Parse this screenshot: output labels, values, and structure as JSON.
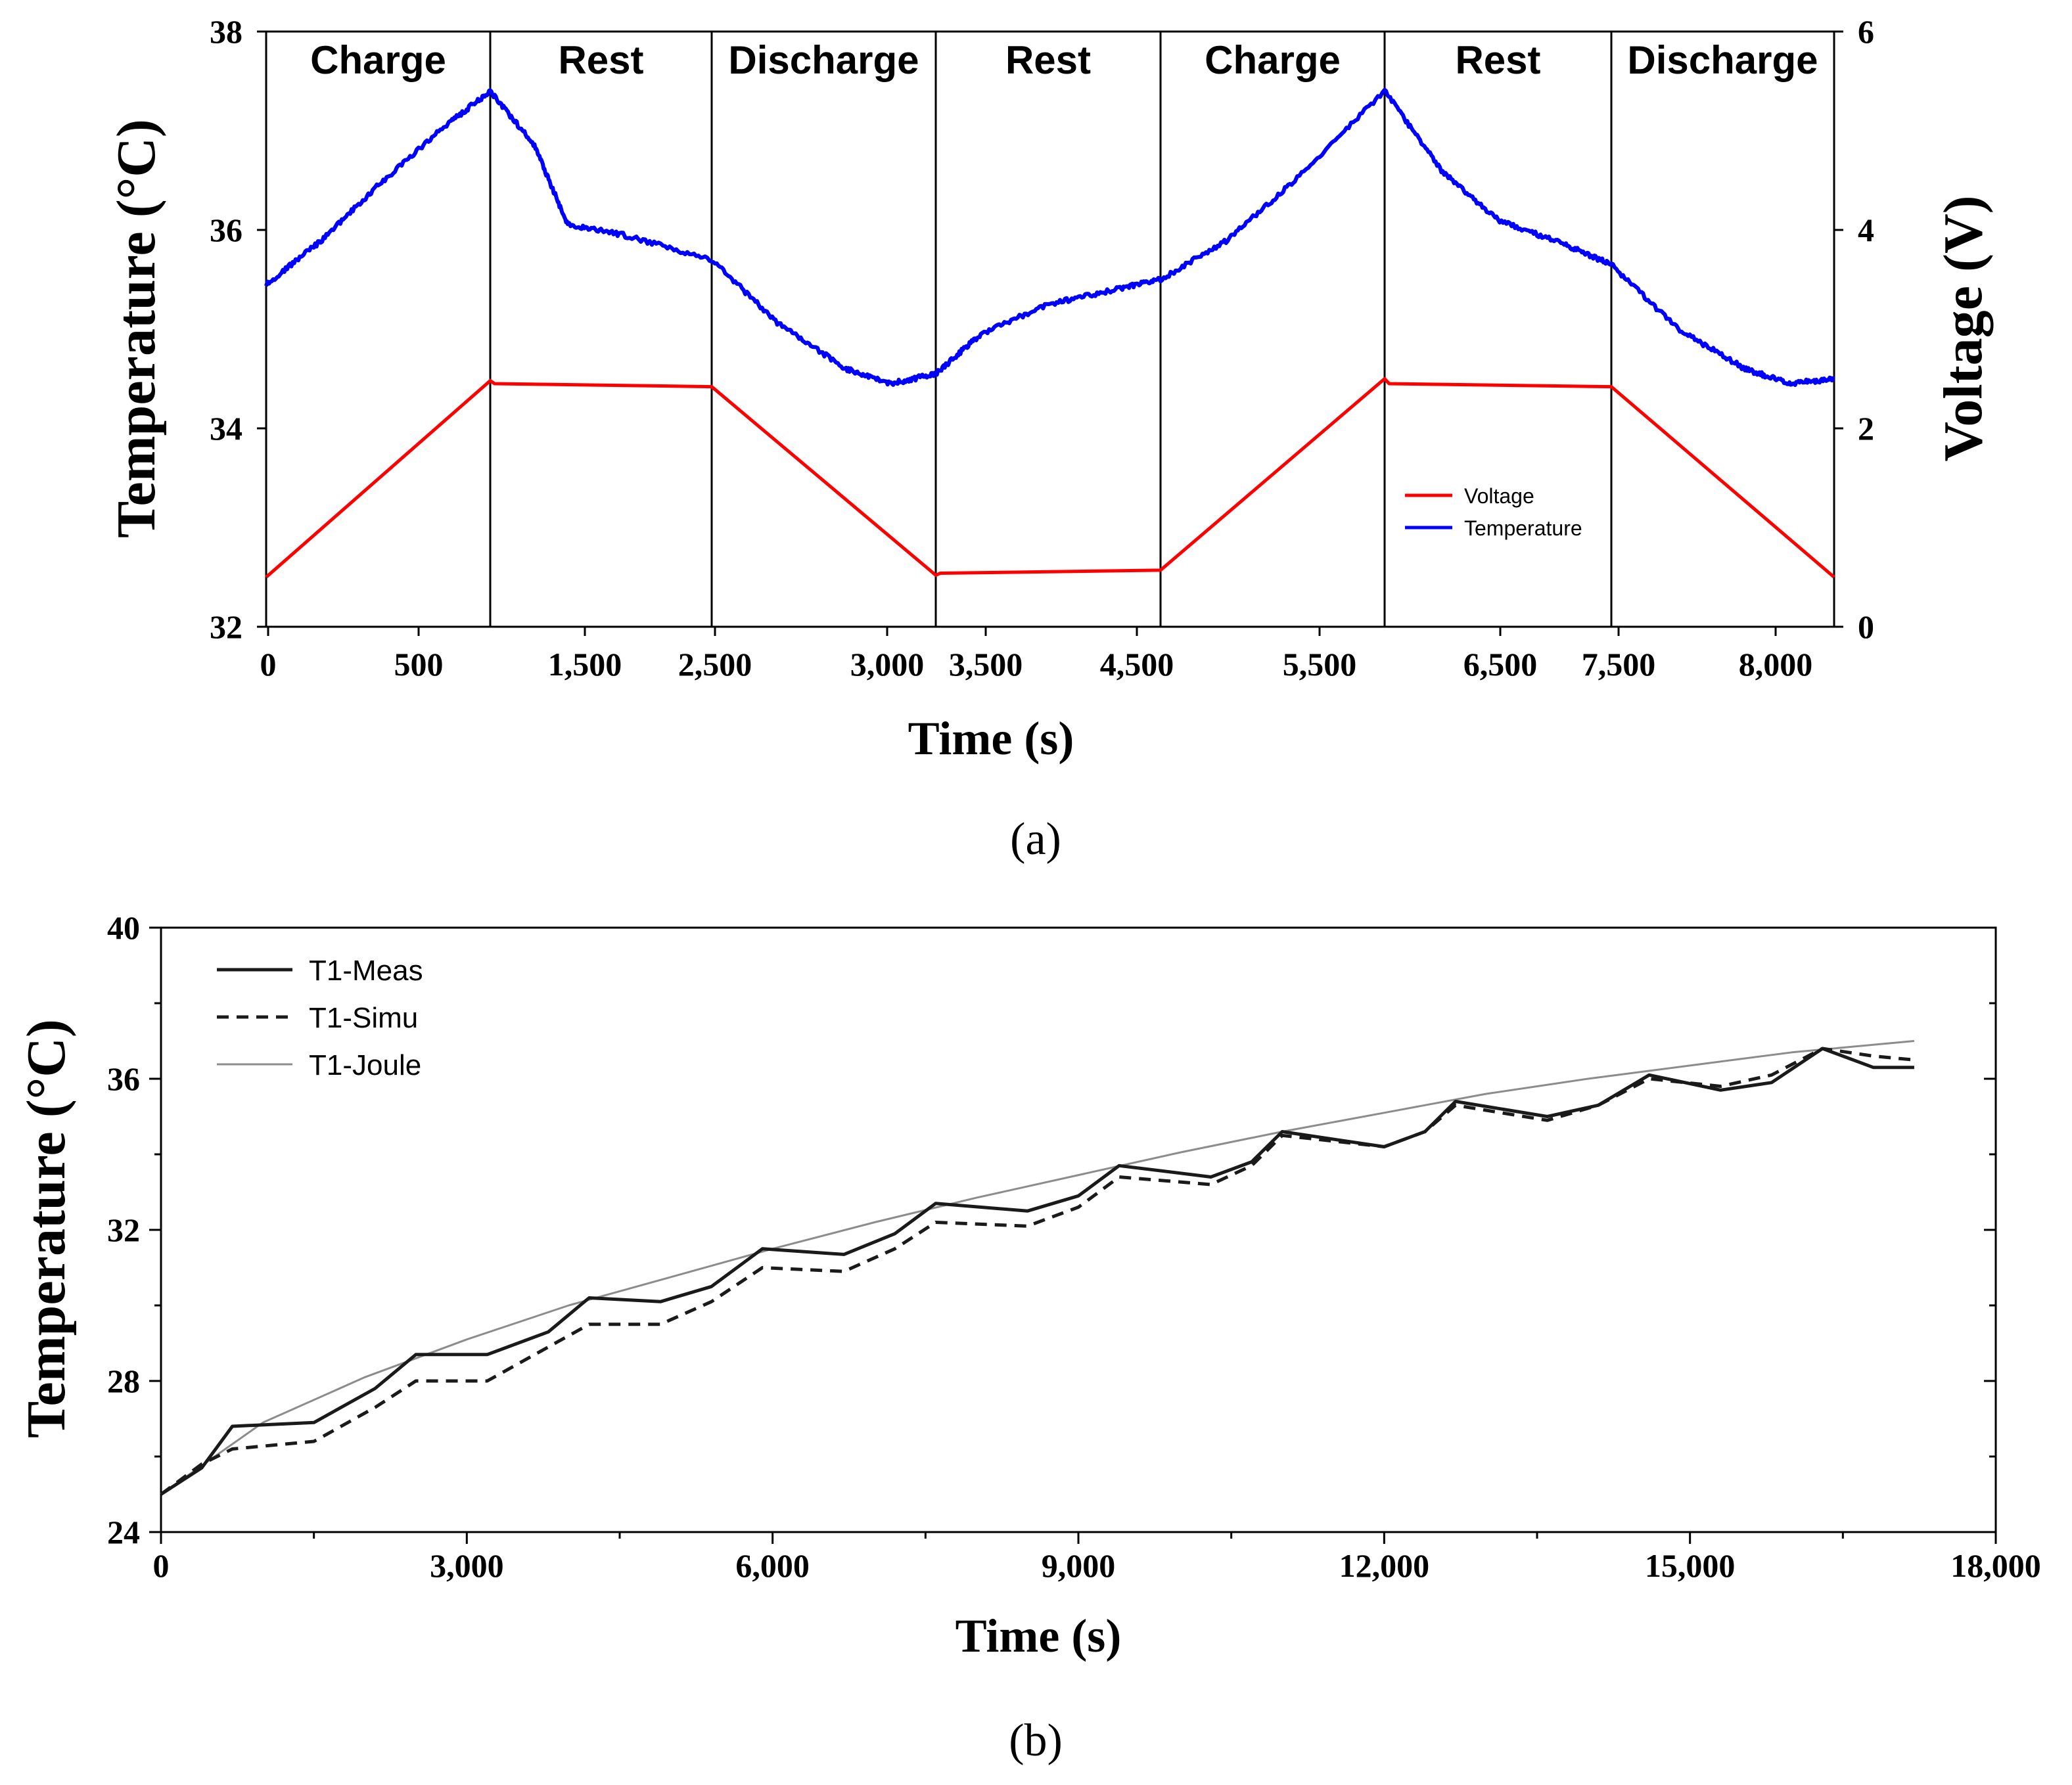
{
  "chart_data": [
    {
      "type": "line",
      "panel_label": "(a)",
      "xlabel": "Time (s)",
      "ylabel": "Temperature (°C)",
      "y2label": "Voltage (V)",
      "ylim": [
        32,
        38
      ],
      "y2lim": [
        0,
        6
      ],
      "yticks": [
        "32",
        "34",
        "36",
        "38"
      ],
      "y2ticks": [
        "0",
        "2",
        "4",
        "6"
      ],
      "xtick_labels": [
        "0",
        "500",
        "1,500",
        "2,500",
        "3,000",
        "3,500",
        "4,500",
        "5,500",
        "6,500",
        "7,500",
        "8,000"
      ],
      "phases": [
        "Charge",
        "Rest",
        "Discharge",
        "Rest",
        "Charge",
        "Rest",
        "Discharge"
      ],
      "phase_boundaries": [
        0,
        1,
        2,
        3,
        4,
        5,
        6,
        7
      ],
      "legend_position": "lower-right",
      "series": [
        {
          "name": "Voltage",
          "color": "#ff0000",
          "axis": "right",
          "points": [
            [
              0,
              0.5
            ],
            [
              1,
              2.48
            ],
            [
              1.02,
              2.45
            ],
            [
              2,
              2.42
            ],
            [
              3,
              0.52
            ],
            [
              3.02,
              0.54
            ],
            [
              4,
              0.57
            ],
            [
              5,
              2.5
            ],
            [
              5.02,
              2.45
            ],
            [
              6,
              2.42
            ],
            [
              7,
              0.5
            ]
          ]
        },
        {
          "name": "Temperature",
          "color": "#0000ff",
          "axis": "left",
          "noisy": true,
          "points": [
            [
              0,
              35.45
            ],
            [
              0.25,
              35.9
            ],
            [
              0.5,
              36.45
            ],
            [
              0.8,
              37.05
            ],
            [
              1,
              37.4
            ],
            [
              1.2,
              36.85
            ],
            [
              1.35,
              36.05
            ],
            [
              1.6,
              35.95
            ],
            [
              2,
              35.7
            ],
            [
              2.3,
              35.05
            ],
            [
              2.6,
              34.6
            ],
            [
              2.8,
              34.45
            ],
            [
              3,
              34.55
            ],
            [
              3.2,
              34.95
            ],
            [
              3.5,
              35.25
            ],
            [
              3.8,
              35.4
            ],
            [
              4,
              35.5
            ],
            [
              4.3,
              35.9
            ],
            [
              4.6,
              36.5
            ],
            [
              5,
              37.4
            ],
            [
              5.25,
              36.6
            ],
            [
              5.5,
              36.1
            ],
            [
              5.8,
              35.85
            ],
            [
              6,
              35.65
            ],
            [
              6.3,
              35.0
            ],
            [
              6.6,
              34.6
            ],
            [
              6.8,
              34.45
            ],
            [
              7,
              34.5
            ]
          ]
        }
      ]
    },
    {
      "type": "line",
      "panel_label": "(b)",
      "xlabel": "Time (s)",
      "ylabel": "Temperature (°C)",
      "xlim": [
        0,
        18000
      ],
      "ylim": [
        24,
        40
      ],
      "xticks": [
        0,
        3000,
        6000,
        9000,
        12000,
        15000,
        18000
      ],
      "xtick_labels": [
        "0",
        "3,000",
        "6,000",
        "9,000",
        "12,000",
        "15,000",
        "18,000"
      ],
      "yticks": [
        24,
        28,
        32,
        36,
        40
      ],
      "ytick_labels": [
        "24",
        "28",
        "32",
        "36",
        "40"
      ],
      "legend_position": "top-left",
      "series": [
        {
          "name": "T1-Meas",
          "color": "#1a1a1a",
          "style": "solid",
          "points": [
            [
              0,
              25.0
            ],
            [
              400,
              25.7
            ],
            [
              700,
              26.8
            ],
            [
              1100,
              26.85
            ],
            [
              1500,
              26.9
            ],
            [
              2100,
              27.8
            ],
            [
              2500,
              28.7
            ],
            [
              3200,
              28.7
            ],
            [
              3800,
              29.3
            ],
            [
              4200,
              30.2
            ],
            [
              4900,
              30.1
            ],
            [
              5400,
              30.5
            ],
            [
              5900,
              31.5
            ],
            [
              6700,
              31.35
            ],
            [
              7200,
              31.9
            ],
            [
              7600,
              32.7
            ],
            [
              8500,
              32.5
            ],
            [
              9000,
              32.9
            ],
            [
              9400,
              33.7
            ],
            [
              10300,
              33.4
            ],
            [
              10700,
              33.8
            ],
            [
              11000,
              34.6
            ],
            [
              12000,
              34.2
            ],
            [
              12400,
              34.6
            ],
            [
              12700,
              35.4
            ],
            [
              13600,
              35.0
            ],
            [
              14100,
              35.3
            ],
            [
              14600,
              36.1
            ],
            [
              15300,
              35.7
            ],
            [
              15800,
              35.9
            ],
            [
              16300,
              36.8
            ],
            [
              16800,
              36.3
            ],
            [
              17200,
              36.3
            ]
          ]
        },
        {
          "name": "T1-Simu",
          "color": "#1a1a1a",
          "style": "dashed",
          "points": [
            [
              0,
              25.0
            ],
            [
              400,
              25.8
            ],
            [
              700,
              26.2
            ],
            [
              1500,
              26.4
            ],
            [
              2100,
              27.3
            ],
            [
              2500,
              28.0
            ],
            [
              3200,
              28.0
            ],
            [
              3800,
              28.9
            ],
            [
              4200,
              29.5
            ],
            [
              4900,
              29.5
            ],
            [
              5400,
              30.1
            ],
            [
              5900,
              31.0
            ],
            [
              6700,
              30.9
            ],
            [
              7200,
              31.5
            ],
            [
              7600,
              32.2
            ],
            [
              8500,
              32.1
            ],
            [
              9000,
              32.6
            ],
            [
              9400,
              33.4
            ],
            [
              10300,
              33.2
            ],
            [
              10700,
              33.7
            ],
            [
              11000,
              34.5
            ],
            [
              12000,
              34.2
            ],
            [
              12400,
              34.6
            ],
            [
              12700,
              35.3
            ],
            [
              13600,
              34.9
            ],
            [
              14100,
              35.3
            ],
            [
              14600,
              36.0
            ],
            [
              15300,
              35.8
            ],
            [
              15800,
              36.1
            ],
            [
              16300,
              36.8
            ],
            [
              16800,
              36.6
            ],
            [
              17200,
              36.5
            ]
          ]
        },
        {
          "name": "T1-Joule",
          "color": "#8c8c8c",
          "style": "solid",
          "points": [
            [
              0,
              25.0
            ],
            [
              1000,
              26.9
            ],
            [
              2000,
              28.1
            ],
            [
              3000,
              29.1
            ],
            [
              4000,
              30.0
            ],
            [
              5000,
              30.75
            ],
            [
              6000,
              31.5
            ],
            [
              7000,
              32.2
            ],
            [
              8000,
              32.85
            ],
            [
              9000,
              33.45
            ],
            [
              10000,
              34.05
            ],
            [
              11000,
              34.6
            ],
            [
              12000,
              35.1
            ],
            [
              13000,
              35.6
            ],
            [
              14000,
              36.0
            ],
            [
              15000,
              36.35
            ],
            [
              16000,
              36.7
            ],
            [
              17200,
              37.0
            ]
          ]
        }
      ]
    }
  ]
}
